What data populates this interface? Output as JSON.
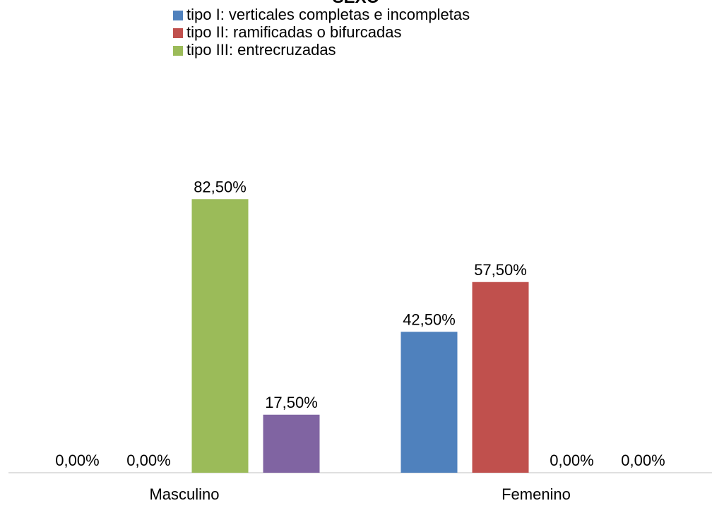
{
  "chart_data": {
    "type": "bar",
    "title": "SEXO",
    "categories": [
      "Masculino",
      "Femenino"
    ],
    "series": [
      {
        "name": "tipo I: verticales completas e incompletas",
        "color": "#4f81bd",
        "values": [
          0,
          42.5
        ],
        "value_labels": [
          "0,00%",
          "42,50%"
        ]
      },
      {
        "name": "tipo II: ramificadas o bifurcadas",
        "color": "#c0504d",
        "values": [
          0,
          57.5
        ],
        "value_labels": [
          "0,00%",
          "57,50%"
        ]
      },
      {
        "name": "tipo III: entrecruzadas",
        "color": "#9bbb59",
        "values": [
          82.5,
          0
        ],
        "value_labels": [
          "82,50%",
          "0,00%"
        ]
      },
      {
        "color": "#8064a2",
        "values": [
          17.5,
          0
        ],
        "value_labels": [
          "17,50%",
          "0,00%"
        ]
      }
    ],
    "ylim": [
      0,
      90
    ],
    "legend": "top"
  }
}
